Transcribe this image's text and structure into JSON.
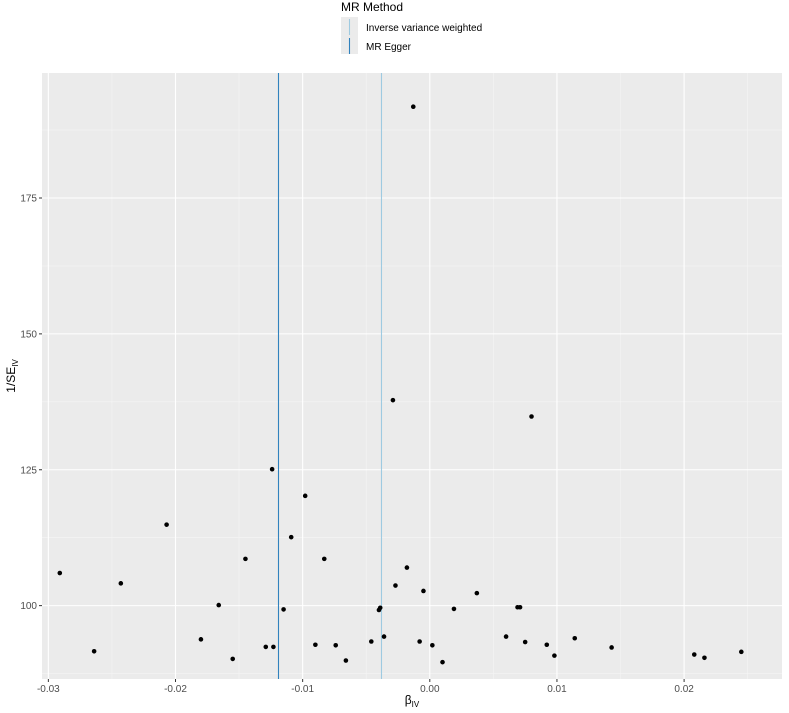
{
  "chart_data": {
    "type": "scatter",
    "xlabel": {
      "main": "β",
      "sub": "IV"
    },
    "ylabel": {
      "main": "1/SE",
      "sub": "IV"
    },
    "xlim": [
      -0.0305,
      0.0277
    ],
    "ylim": [
      86.5,
      198
    ],
    "x_ticks": [
      -0.03,
      -0.02,
      -0.01,
      0.0,
      0.01,
      0.02
    ],
    "x_tick_labels": [
      "-0.03",
      "-0.02",
      "-0.01",
      "0.00",
      "0.01",
      "0.02"
    ],
    "y_ticks": [
      100,
      125,
      150,
      175
    ],
    "y_tick_labels": [
      "100",
      "125",
      "150",
      "175"
    ],
    "grid": true,
    "legend": {
      "title": "MR Method",
      "placement": "top",
      "entries": [
        {
          "label": "Inverse variance weighted",
          "color": "#9ecae1"
        },
        {
          "label": "MR Egger",
          "color": "#3182bd"
        }
      ]
    },
    "vlines": [
      {
        "method": "Inverse variance weighted",
        "x": -0.0038,
        "color": "#9ecae1"
      },
      {
        "method": "MR Egger",
        "x": -0.0119,
        "color": "#3182bd"
      }
    ],
    "points": [
      {
        "x": -0.0291,
        "y": 106.0
      },
      {
        "x": -0.0264,
        "y": 91.6
      },
      {
        "x": -0.0243,
        "y": 104.1
      },
      {
        "x": -0.0207,
        "y": 114.9
      },
      {
        "x": -0.018,
        "y": 93.8
      },
      {
        "x": -0.0166,
        "y": 100.1
      },
      {
        "x": -0.0155,
        "y": 90.2
      },
      {
        "x": -0.0145,
        "y": 108.6
      },
      {
        "x": -0.0129,
        "y": 92.4
      },
      {
        "x": -0.0123,
        "y": 92.4
      },
      {
        "x": -0.0124,
        "y": 125.1
      },
      {
        "x": -0.0115,
        "y": 99.3
      },
      {
        "x": -0.0109,
        "y": 112.6
      },
      {
        "x": -0.0098,
        "y": 120.2
      },
      {
        "x": -0.009,
        "y": 92.8
      },
      {
        "x": -0.0083,
        "y": 108.6
      },
      {
        "x": -0.0074,
        "y": 92.7
      },
      {
        "x": -0.0066,
        "y": 89.9
      },
      {
        "x": -0.0046,
        "y": 93.4
      },
      {
        "x": -0.004,
        "y": 99.2
      },
      {
        "x": -0.0039,
        "y": 99.6
      },
      {
        "x": -0.0036,
        "y": 94.3
      },
      {
        "x": -0.0013,
        "y": 191.8
      },
      {
        "x": -0.0029,
        "y": 137.8
      },
      {
        "x": -0.0027,
        "y": 103.7
      },
      {
        "x": -0.0018,
        "y": 107.0
      },
      {
        "x": -0.0008,
        "y": 93.4
      },
      {
        "x": -0.0005,
        "y": 102.7
      },
      {
        "x": 0.0002,
        "y": 92.7
      },
      {
        "x": 0.001,
        "y": 89.6
      },
      {
        "x": 0.0019,
        "y": 99.4
      },
      {
        "x": 0.0037,
        "y": 102.3
      },
      {
        "x": 0.006,
        "y": 94.3
      },
      {
        "x": 0.0069,
        "y": 99.7
      },
      {
        "x": 0.0071,
        "y": 99.7
      },
      {
        "x": 0.0075,
        "y": 93.3
      },
      {
        "x": 0.008,
        "y": 134.8
      },
      {
        "x": 0.0092,
        "y": 92.8
      },
      {
        "x": 0.0098,
        "y": 90.8
      },
      {
        "x": 0.0114,
        "y": 94.0
      },
      {
        "x": 0.0143,
        "y": 92.3
      },
      {
        "x": 0.0208,
        "y": 91.0
      },
      {
        "x": 0.0216,
        "y": 90.4
      },
      {
        "x": 0.0245,
        "y": 91.5
      }
    ]
  },
  "colors": {
    "panel_background": "#ebebeb",
    "grid_major": "#ffffff",
    "grid_minor": "#f5f5f5",
    "point": "#000000",
    "tick_label": "#4d4d4d"
  }
}
